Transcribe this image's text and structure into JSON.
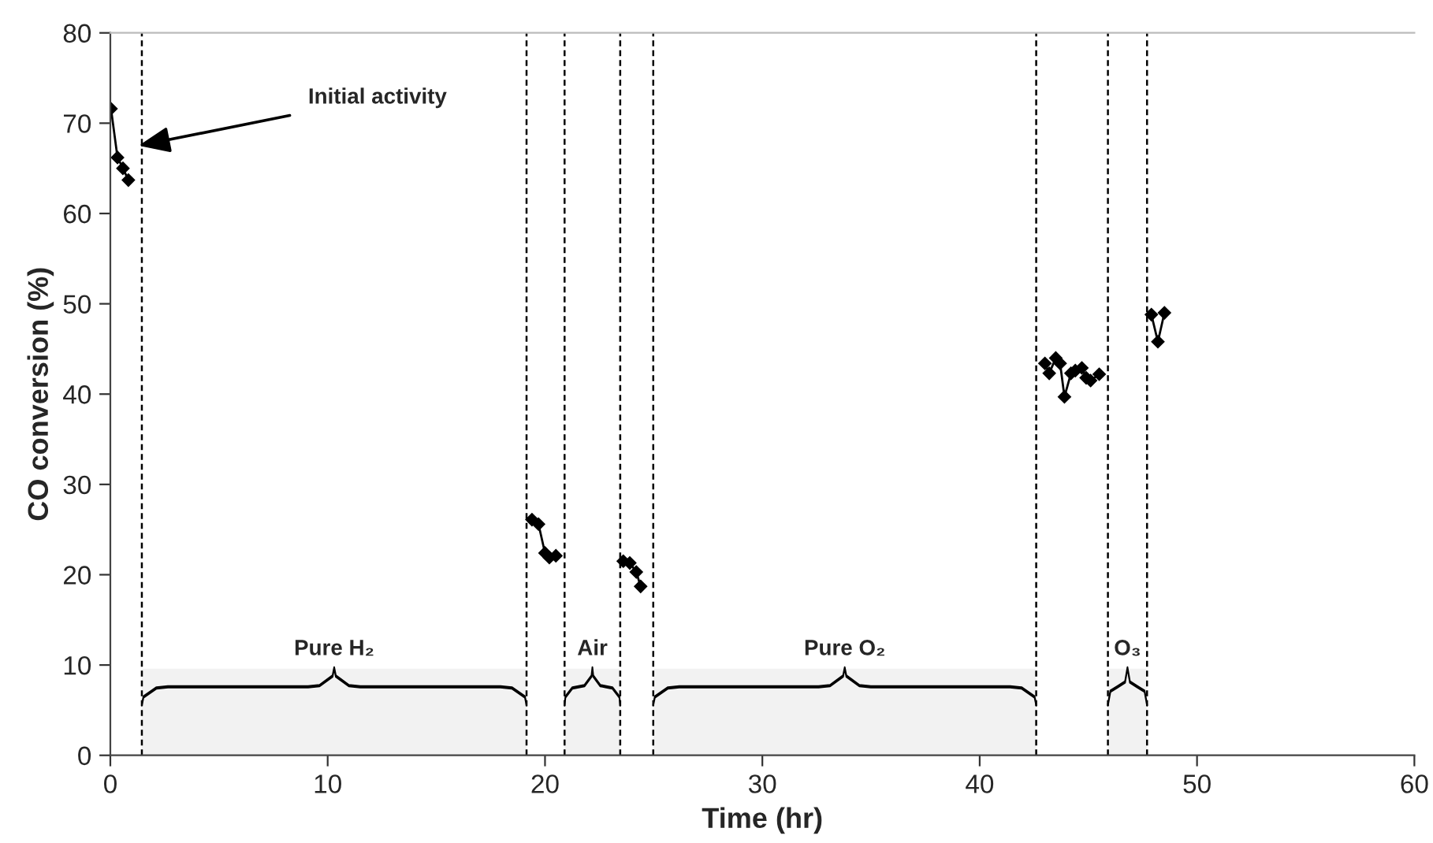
{
  "chart_data": {
    "type": "line",
    "xlabel": "Time (hr)",
    "ylabel": "CO conversion (%)",
    "xlim": [
      0,
      60
    ],
    "xticks": [
      0,
      10,
      20,
      30,
      40,
      50,
      60
    ],
    "ylim": [
      0,
      80
    ],
    "yticks": [
      0,
      10,
      20,
      30,
      40,
      50,
      60,
      70,
      80
    ],
    "grid": false,
    "marker": "diamond",
    "line_style": "solid",
    "series": [
      {
        "color": "#000000",
        "x": [
          0.03,
          0.33,
          0.58,
          0.83
        ],
        "values": [
          71.6,
          66.2,
          65.0,
          63.7
        ]
      },
      {
        "color": "#000000",
        "x": [
          19.4,
          19.7,
          20.0,
          20.2,
          20.5
        ],
        "values": [
          26.1,
          25.6,
          22.4,
          21.9,
          22.1
        ]
      },
      {
        "color": "#000000",
        "x": [
          23.6,
          23.9,
          24.2,
          24.4
        ],
        "values": [
          21.5,
          21.3,
          20.3,
          18.7
        ]
      },
      {
        "color": "#000000",
        "x": [
          43.0,
          43.2,
          43.5,
          43.7,
          43.9,
          44.2,
          44.4,
          44.7,
          44.9,
          45.1,
          45.5
        ],
        "values": [
          43.4,
          42.3,
          44.0,
          43.4,
          39.7,
          42.3,
          42.6,
          42.9,
          41.8,
          41.5,
          42.2
        ]
      },
      {
        "color": "#000000",
        "x": [
          47.9,
          48.2,
          48.5
        ],
        "values": [
          48.8,
          45.8,
          49.0
        ]
      }
    ],
    "ref_lines": [
      {
        "axis": "x",
        "value": 1.45,
        "line_style": "dashed",
        "color": "#000000"
      },
      {
        "axis": "x",
        "value": 19.15,
        "line_style": "dashed",
        "color": "#000000"
      },
      {
        "axis": "x",
        "value": 20.9,
        "line_style": "dashed",
        "color": "#000000"
      },
      {
        "axis": "x",
        "value": 23.46,
        "line_style": "dashed",
        "color": "#000000"
      },
      {
        "axis": "x",
        "value": 24.98,
        "line_style": "dashed",
        "color": "#000000"
      },
      {
        "axis": "x",
        "value": 42.6,
        "line_style": "dashed",
        "color": "#000000"
      },
      {
        "axis": "x",
        "value": 45.9,
        "line_style": "dashed",
        "color": "#000000"
      },
      {
        "axis": "x",
        "value": 47.7,
        "line_style": "dashed",
        "color": "#000000"
      }
    ],
    "bands": [
      {
        "axis": "x",
        "from": 1.45,
        "to": 19.15,
        "label": "Pure H₂",
        "color": "#f2f2f2"
      },
      {
        "axis": "x",
        "from": 20.9,
        "to": 23.46,
        "label": "Air",
        "color": "#f2f2f2"
      },
      {
        "axis": "x",
        "from": 24.98,
        "to": 42.6,
        "label": "Pure O₂",
        "color": "#f2f2f2"
      },
      {
        "axis": "x",
        "from": 45.9,
        "to": 47.7,
        "label": "O₃",
        "color": "#f2f2f2"
      }
    ],
    "annotations": [
      {
        "text": "Initial activity",
        "x": 1.3,
        "y": 67.5
      }
    ]
  }
}
